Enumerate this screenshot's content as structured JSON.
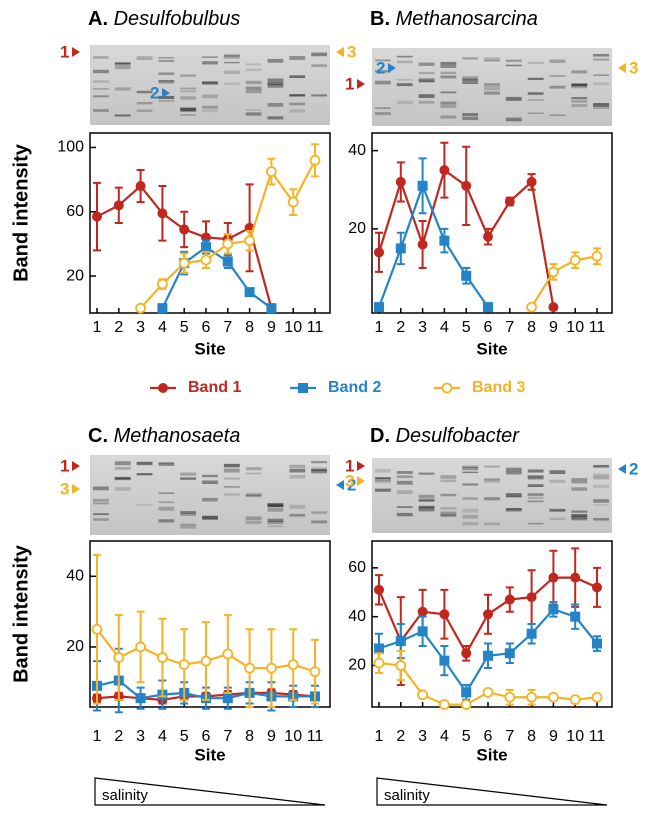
{
  "chart_data": [
    {
      "type": "line",
      "panel": "A.",
      "genus": "Desulfobulbus",
      "ylabel": "Band intensity",
      "xlabel": "Site",
      "gel_markers": [
        "1",
        "2",
        "3"
      ],
      "categories": [
        "1",
        "2",
        "3",
        "4",
        "5",
        "6",
        "7",
        "8",
        "9",
        "10",
        "11"
      ],
      "ylim": [
        -3,
        109
      ],
      "yticks": [
        20,
        60,
        100
      ],
      "series": [
        {
          "color": "#c0271e",
          "marker": "circle",
          "values": [
            57,
            64,
            76,
            59,
            49,
            44,
            43,
            50,
            0,
            null,
            null
          ],
          "errors": [
            21,
            11,
            10,
            17,
            11,
            10,
            10,
            27,
            0,
            null,
            null
          ]
        },
        {
          "color": "#2583c8",
          "marker": "square",
          "values": [
            null,
            null,
            null,
            0,
            28,
            38,
            29,
            10,
            0,
            null,
            null
          ],
          "errors": [
            null,
            null,
            null,
            0,
            7,
            4,
            4,
            0,
            0,
            null,
            null
          ]
        },
        {
          "color": "#f5b324",
          "marker": "open-circle",
          "values": [
            null,
            null,
            0,
            15,
            28,
            30,
            40,
            42,
            85,
            66,
            92
          ],
          "errors": [
            null,
            null,
            0,
            3,
            6,
            5,
            6,
            6,
            8,
            8,
            10
          ]
        }
      ]
    },
    {
      "type": "line",
      "panel": "B.",
      "genus": "Methanosarcina",
      "xlabel": "Site",
      "gel_markers": [
        "2",
        "1",
        "3"
      ],
      "categories": [
        "1",
        "2",
        "3",
        "4",
        "5",
        "6",
        "7",
        "8",
        "9",
        "10",
        "11"
      ],
      "ylim": [
        -1.5,
        44.5
      ],
      "yticks": [
        20,
        40
      ],
      "series": [
        {
          "color": "#c0271e",
          "marker": "circle",
          "values": [
            14,
            32,
            16,
            35,
            31,
            18,
            27,
            32,
            0,
            null,
            null
          ],
          "errors": [
            5,
            5,
            6,
            7,
            10,
            2,
            1,
            2,
            0,
            null,
            null
          ]
        },
        {
          "color": "#2583c8",
          "marker": "square",
          "values": [
            0,
            15,
            31,
            17,
            8,
            0,
            null,
            null,
            null,
            null,
            null
          ],
          "errors": [
            0,
            4,
            7,
            3,
            2,
            0,
            null,
            null,
            null,
            null,
            null
          ]
        },
        {
          "color": "#f5b324",
          "marker": "open-circle",
          "values": [
            null,
            null,
            null,
            null,
            null,
            null,
            null,
            0,
            9,
            12,
            13
          ],
          "errors": [
            null,
            null,
            null,
            null,
            null,
            null,
            null,
            0,
            2,
            2,
            2
          ]
        }
      ]
    },
    {
      "type": "line",
      "panel": "C.",
      "genus": "Methanosaeta",
      "ylabel": "Band intensity",
      "xlabel": "Site",
      "annotation": "salinity",
      "gel_markers": [
        "1",
        "3",
        "2"
      ],
      "categories": [
        "1",
        "2",
        "3",
        "4",
        "5",
        "6",
        "7",
        "8",
        "9",
        "10",
        "11"
      ],
      "ylim": [
        3,
        50
      ],
      "yticks": [
        20,
        40
      ],
      "series": [
        {
          "color": "#c0271e",
          "marker": "circle",
          "values": [
            5.5,
            6,
            5.5,
            5,
            6,
            6,
            6.5,
            7,
            7,
            6.5,
            6
          ],
          "errors": [
            1,
            1,
            1,
            1,
            1,
            1,
            1,
            1,
            1,
            1,
            1
          ]
        },
        {
          "color": "#2583c8",
          "marker": "square",
          "values": [
            9,
            10.5,
            5.5,
            6.5,
            7,
            5.5,
            5.5,
            7,
            6,
            6,
            6
          ],
          "errors": [
            7,
            9,
            3,
            4,
            3,
            3,
            3,
            3,
            4,
            3,
            3
          ]
        },
        {
          "color": "#f5b324",
          "marker": "open-circle",
          "values": [
            25,
            17,
            20,
            17,
            15,
            16,
            18,
            14,
            14,
            15,
            13
          ],
          "errors": [
            21,
            12,
            10,
            11,
            10,
            11,
            11,
            11,
            11,
            10,
            9
          ]
        }
      ]
    },
    {
      "type": "line",
      "panel": "D.",
      "genus": "Desulfobacter",
      "xlabel": "Site",
      "annotation": "salinity",
      "gel_markers": [
        "1",
        "3",
        "2"
      ],
      "categories": [
        "1",
        "2",
        "3",
        "4",
        "5",
        "6",
        "7",
        "8",
        "9",
        "10",
        "11"
      ],
      "ylim": [
        3,
        71
      ],
      "yticks": [
        20,
        40,
        60
      ],
      "series": [
        {
          "color": "#c0271e",
          "marker": "circle",
          "values": [
            51,
            30,
            42,
            41,
            25,
            41,
            47,
            48,
            56,
            56,
            52
          ],
          "errors": [
            6,
            18,
            9,
            10,
            3,
            8,
            5,
            11,
            11,
            12,
            8
          ]
        },
        {
          "color": "#2583c8",
          "marker": "square",
          "values": [
            27,
            30,
            34,
            22,
            9,
            24,
            25,
            33,
            43,
            40,
            29
          ],
          "errors": [
            6,
            7,
            6,
            6,
            3,
            5,
            4,
            4,
            3,
            5,
            3
          ]
        },
        {
          "color": "#f5b324",
          "marker": "open-circle",
          "values": [
            21,
            20,
            8,
            4,
            4,
            9,
            7,
            7,
            7,
            6,
            7
          ],
          "errors": [
            4,
            6,
            1,
            1,
            1,
            1,
            3,
            3,
            1,
            1,
            1
          ]
        }
      ]
    }
  ],
  "legend": [
    {
      "label": "Band 1",
      "color": "#c0271e",
      "marker": "circle"
    },
    {
      "label": "Band 2",
      "color": "#2583c8",
      "marker": "square"
    },
    {
      "label": "Band 3",
      "color": "#f5b324",
      "marker": "open-circle"
    }
  ]
}
